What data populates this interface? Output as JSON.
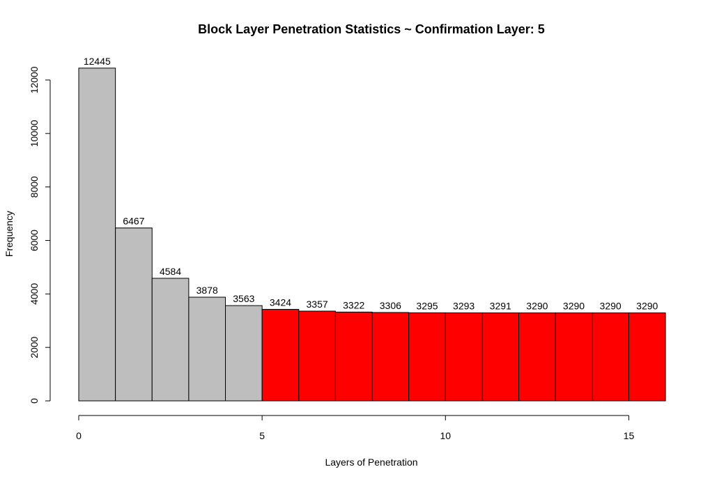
{
  "chart_data": {
    "type": "bar",
    "title": "Block Layer Penetration Statistics ~ Confirmation Layer:  5",
    "xlabel": "Layers of Penetration",
    "ylabel": "Frequency",
    "x_bins": [
      0,
      1,
      2,
      3,
      4,
      5,
      6,
      7,
      8,
      9,
      10,
      11,
      12,
      13,
      14,
      15
    ],
    "values": [
      12445,
      6467,
      4584,
      3878,
      3563,
      3424,
      3357,
      3322,
      3306,
      3295,
      3293,
      3291,
      3290,
      3290,
      3290,
      3290
    ],
    "xlim": [
      0,
      16
    ],
    "ylim": [
      0,
      12445
    ],
    "x_ticks": [
      0,
      5,
      10,
      15
    ],
    "y_ticks": [
      0,
      2000,
      4000,
      6000,
      8000,
      10000,
      12000
    ],
    "confirmation_layer": 5,
    "colors": {
      "below": "#bebebe",
      "at_or_above": "#ff0000"
    },
    "grid": false
  }
}
